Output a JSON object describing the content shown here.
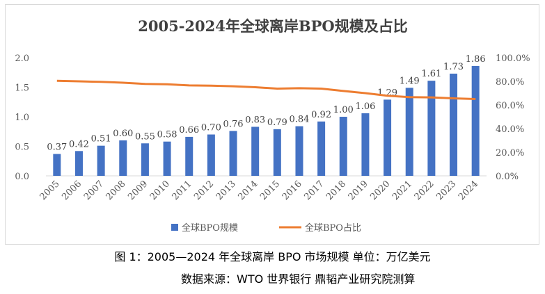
{
  "chart_data": {
    "type": "bar",
    "title": "2005-2024年全球离岸BPO规模及占比",
    "categories": [
      "2005",
      "2006",
      "2007",
      "2008",
      "2009",
      "2010",
      "2011",
      "2012",
      "2013",
      "2014",
      "2015",
      "2016",
      "2017",
      "2018",
      "2019",
      "2020",
      "2021",
      "2022",
      "2023",
      "2024"
    ],
    "series": [
      {
        "name": "全球BPO规模",
        "kind": "bar",
        "axis": "left",
        "color": "#4472c4",
        "values": [
          0.37,
          0.42,
          0.51,
          0.6,
          0.55,
          0.58,
          0.66,
          0.7,
          0.76,
          0.83,
          0.79,
          0.84,
          0.92,
          1.0,
          1.06,
          1.29,
          1.49,
          1.61,
          1.73,
          1.86
        ],
        "data_labels": [
          "0.37",
          "0.42",
          "0.51",
          "0.60",
          "0.55",
          "0.58",
          "0.66",
          "0.70",
          "0.76",
          "0.83",
          "0.79",
          "0.84",
          "0.92",
          "1.00",
          "1.06",
          "1.29",
          "1.49",
          "1.61",
          "1.73",
          "1.86"
        ]
      },
      {
        "name": "全球BPO占比",
        "kind": "line",
        "axis": "right",
        "color": "#ed7d31",
        "values": [
          80.5,
          80.0,
          79.5,
          78.8,
          77.8,
          77.5,
          76.5,
          76.3,
          75.8,
          75.0,
          73.8,
          74.2,
          73.8,
          71.8,
          70.0,
          67.8,
          66.6,
          66.4,
          65.6,
          65.0
        ]
      }
    ],
    "y_left": {
      "ylim": [
        0,
        2.0
      ],
      "ticks": [
        "0.0",
        "0.5",
        "1.0",
        "1.5",
        "2.0"
      ]
    },
    "y_right": {
      "ylim": [
        0,
        100
      ],
      "ticks": [
        "0.0%",
        "20.0%",
        "40.0%",
        "60.0%",
        "80.0%",
        "100.0%"
      ]
    },
    "legend_position": "bottom",
    "grid": false
  },
  "captions": {
    "figure": "图 1：2005—2024 年全球离岸 BPO 市场规模   单位：万亿美元",
    "source": "数据来源：WTO 世界银行 鼎韬产业研究院测算"
  }
}
